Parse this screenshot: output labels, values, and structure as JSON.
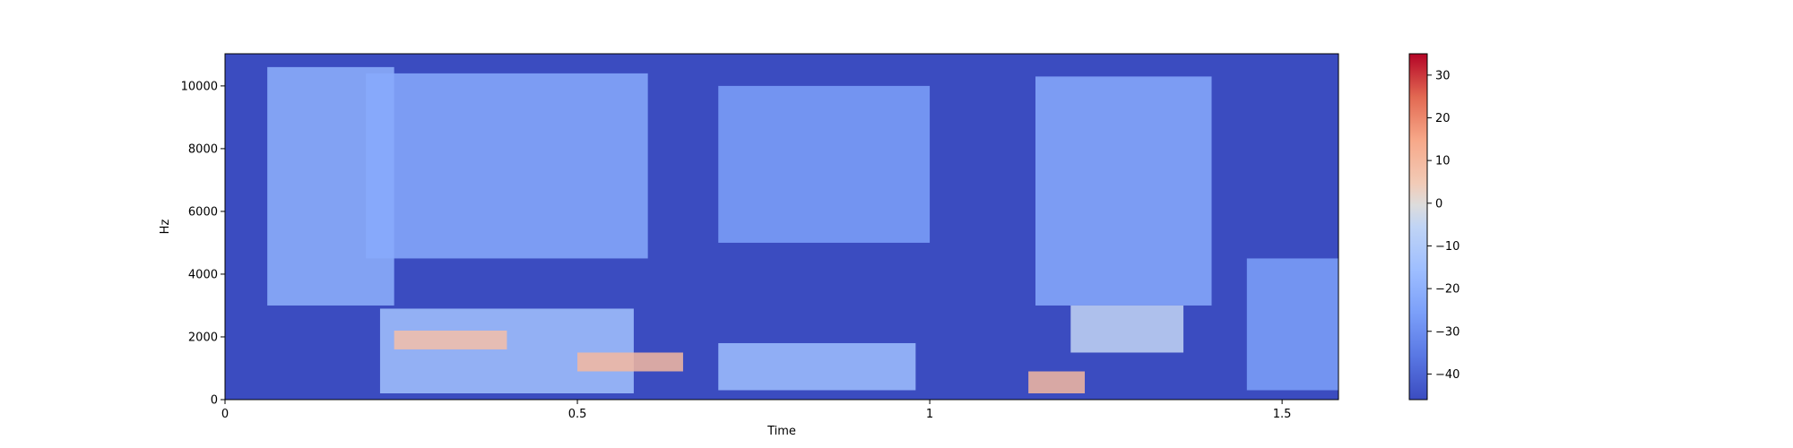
{
  "chart_data": {
    "type": "heatmap",
    "title": "",
    "xlabel": "Time",
    "ylabel": "Hz",
    "x_range": [
      0,
      1.58
    ],
    "y_range": [
      0,
      11025
    ],
    "x_ticks": [
      {
        "value": 0,
        "label": "0"
      },
      {
        "value": 0.5,
        "label": "0.5"
      },
      {
        "value": 1,
        "label": "1"
      },
      {
        "value": 1.5,
        "label": "1.5"
      }
    ],
    "y_ticks": [
      {
        "value": 0,
        "label": "0"
      },
      {
        "value": 2000,
        "label": "2000"
      },
      {
        "value": 4000,
        "label": "4000"
      },
      {
        "value": 6000,
        "label": "6000"
      },
      {
        "value": 8000,
        "label": "8000"
      },
      {
        "value": 10000,
        "label": "10000"
      }
    ],
    "colormap": "coolwarm",
    "colorbar": {
      "range": [
        -46,
        35
      ],
      "ticks": [
        {
          "value": 30,
          "label": "30"
        },
        {
          "value": 20,
          "label": "20"
        },
        {
          "value": 10,
          "label": "10"
        },
        {
          "value": 0,
          "label": "0"
        },
        {
          "value": -10,
          "label": "−10"
        },
        {
          "value": -20,
          "label": "−20"
        },
        {
          "value": -30,
          "label": "−30"
        },
        {
          "value": -40,
          "label": "−40"
        }
      ]
    },
    "regions": [
      {
        "t0": 0.06,
        "t1": 0.24,
        "f0": 3000,
        "f1": 10600,
        "db": -20
      },
      {
        "t0": 0.2,
        "t1": 0.6,
        "f0": 4500,
        "f1": 10400,
        "db": -22
      },
      {
        "t0": 0.22,
        "t1": 0.58,
        "f0": 200,
        "f1": 2900,
        "db": -14
      },
      {
        "t0": 0.24,
        "t1": 0.4,
        "f0": 1600,
        "f1": 2200,
        "db": 8
      },
      {
        "t0": 0.5,
        "t1": 0.65,
        "f0": 900,
        "f1": 1500,
        "db": 10
      },
      {
        "t0": 0.7,
        "t1": 1.0,
        "f0": 5000,
        "f1": 10000,
        "db": -25
      },
      {
        "t0": 0.7,
        "t1": 0.98,
        "f0": 300,
        "f1": 1800,
        "db": -15
      },
      {
        "t0": 1.15,
        "t1": 1.4,
        "f0": 3000,
        "f1": 10300,
        "db": -22
      },
      {
        "t0": 1.2,
        "t1": 1.36,
        "f0": 1500,
        "f1": 3000,
        "db": -5
      },
      {
        "t0": 1.14,
        "t1": 1.22,
        "f0": 200,
        "f1": 900,
        "db": 10
      },
      {
        "t0": 1.45,
        "t1": 1.58,
        "f0": 300,
        "f1": 4500,
        "db": -25
      }
    ]
  }
}
